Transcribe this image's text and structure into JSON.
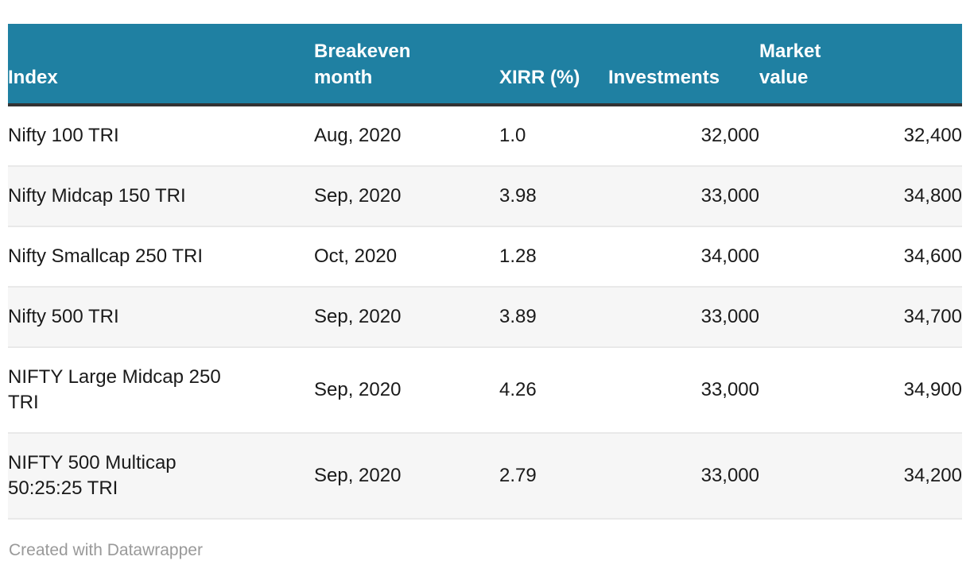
{
  "chart_data": {
    "type": "table",
    "title": "",
    "columns": [
      {
        "id": "index",
        "label": "Index"
      },
      {
        "id": "breakeven_month",
        "label": "Breakeven\nmonth"
      },
      {
        "id": "xirr_pct",
        "label": "XIRR (%)"
      },
      {
        "id": "investments",
        "label": "Investments"
      },
      {
        "id": "market_value",
        "label": "Market\nvalue"
      }
    ],
    "rows": [
      {
        "index": "Nifty 100 TRI",
        "breakeven_month": "Aug, 2020",
        "xirr_pct": "1.0",
        "investments": "32,000",
        "market_value": "32,400"
      },
      {
        "index": "Nifty Midcap 150 TRI",
        "breakeven_month": "Sep, 2020",
        "xirr_pct": "3.98",
        "investments": "33,000",
        "market_value": "34,800"
      },
      {
        "index": "Nifty Smallcap 250 TRI",
        "breakeven_month": "Oct, 2020",
        "xirr_pct": "1.28",
        "investments": "34,000",
        "market_value": "34,600"
      },
      {
        "index": "Nifty 500 TRI",
        "breakeven_month": "Sep, 2020",
        "xirr_pct": "3.89",
        "investments": "33,000",
        "market_value": "34,700"
      },
      {
        "index": "NIFTY Large Midcap 250\nTRI",
        "breakeven_month": "Sep, 2020",
        "xirr_pct": "4.26",
        "investments": "33,000",
        "market_value": "34,900"
      },
      {
        "index": "NIFTY 500 Multicap\n50:25:25 TRI",
        "breakeven_month": "Sep, 2020",
        "xirr_pct": "2.79",
        "investments": "33,000",
        "market_value": "34,200"
      }
    ],
    "numeric_series": [
      {
        "name": "XIRR (%)",
        "values": [
          1.0,
          3.98,
          1.28,
          3.89,
          4.26,
          2.79
        ]
      },
      {
        "name": "Investments",
        "values": [
          32000,
          33000,
          34000,
          33000,
          33000,
          33000
        ]
      },
      {
        "name": "Market value",
        "values": [
          32400,
          34800,
          34600,
          34700,
          34900,
          34200
        ]
      }
    ],
    "layout_hints": {
      "header_background": "#1f80a2",
      "alternating_rows": true,
      "first_row_background": "#ffffff",
      "alt_row_background": "#f6f6f6"
    }
  },
  "footer": {
    "attribution": "Created with Datawrapper"
  },
  "colors": {
    "header_background": "#1f80a2",
    "header_text": "#ffffff",
    "header_bottom_border": "#333333",
    "body_text": "#1a1a1a",
    "row_alt_background": "#f6f6f6",
    "row_separator": "#e9e9e9",
    "attribution_text": "#999999",
    "page_background": "#ffffff"
  }
}
